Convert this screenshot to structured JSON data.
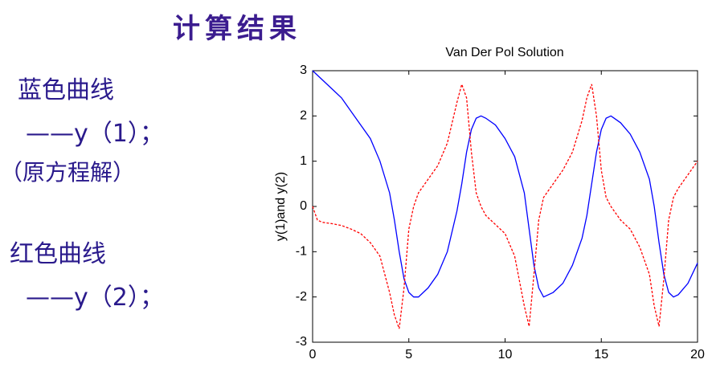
{
  "slide": {
    "title": "计算结果",
    "notes": [
      "蓝色曲线",
      "——y（1）；",
      "（原方程解）",
      "红色曲线",
      "——y（2）；"
    ]
  },
  "chart_data": {
    "type": "line",
    "title": "Van Der Pol Solution",
    "y_label": "y(1)and y(2)",
    "x": [
      0,
      0.25,
      0.5,
      1,
      1.5,
      2,
      2.5,
      3,
      3.5,
      4,
      4.25,
      4.5,
      4.75,
      5,
      5.25,
      5.5,
      6,
      6.5,
      7,
      7.5,
      7.75,
      8,
      8.25,
      8.5,
      8.75,
      9,
      9.5,
      10,
      10.5,
      11,
      11.25,
      11.5,
      11.75,
      12,
      12.5,
      13,
      13.5,
      14,
      14.25,
      14.5,
      14.75,
      15,
      15.25,
      15.5,
      16,
      16.5,
      17,
      17.5,
      17.75,
      18,
      18.25,
      18.5,
      18.75,
      19,
      19.5,
      20
    ],
    "series": [
      {
        "color": "#0000ff",
        "linestyle": "solid",
        "values": [
          3.0,
          2.9,
          2.8,
          2.6,
          2.4,
          2.1,
          1.8,
          1.5,
          1.0,
          0.3,
          -0.3,
          -1.0,
          -1.6,
          -1.9,
          -2.0,
          -2.0,
          -1.8,
          -1.5,
          -1.0,
          -0.1,
          0.5,
          1.2,
          1.7,
          1.95,
          2.0,
          1.95,
          1.8,
          1.5,
          1.1,
          0.3,
          -0.5,
          -1.3,
          -1.8,
          -2.0,
          -1.9,
          -1.7,
          -1.3,
          -0.7,
          -0.2,
          0.5,
          1.2,
          1.7,
          1.95,
          2.0,
          1.85,
          1.6,
          1.2,
          0.6,
          0.0,
          -0.8,
          -1.5,
          -1.9,
          -2.0,
          -1.95,
          -1.7,
          -1.25
        ]
      },
      {
        "color": "#ff0000",
        "linestyle": "dashed",
        "values": [
          0,
          -0.3,
          -0.35,
          -0.38,
          -0.42,
          -0.5,
          -0.6,
          -0.8,
          -1.1,
          -1.9,
          -2.4,
          -2.7,
          -1.8,
          -0.5,
          0.0,
          0.3,
          0.6,
          0.9,
          1.4,
          2.3,
          2.7,
          2.4,
          1.2,
          0.3,
          0.0,
          -0.2,
          -0.4,
          -0.6,
          -1.1,
          -2.2,
          -2.65,
          -1.5,
          -0.3,
          0.2,
          0.5,
          0.8,
          1.2,
          1.9,
          2.4,
          2.7,
          2.0,
          0.8,
          0.2,
          0.0,
          -0.3,
          -0.5,
          -0.9,
          -1.5,
          -2.2,
          -2.65,
          -1.6,
          -0.3,
          0.2,
          0.4,
          0.7,
          1.0
        ]
      }
    ],
    "xlim": [
      0,
      20
    ],
    "xticks": [
      0,
      5,
      10,
      15,
      20
    ],
    "ylim": [
      -3,
      3
    ],
    "yticks": [
      -3,
      -2,
      -1,
      0,
      1,
      2,
      3
    ],
    "grid": false
  }
}
